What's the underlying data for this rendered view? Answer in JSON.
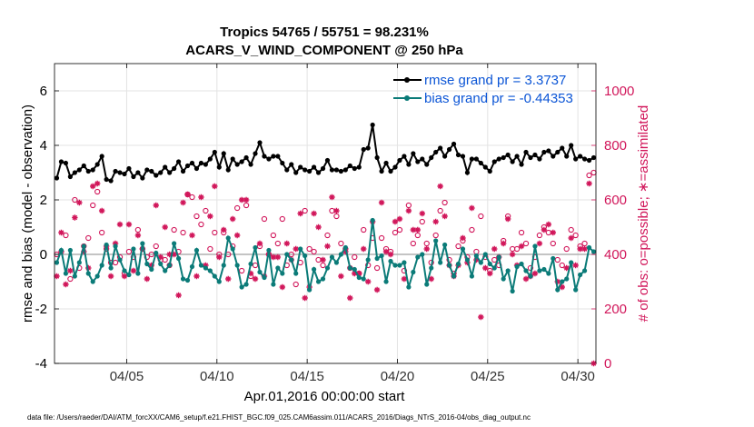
{
  "colors": {
    "rmse": "#000000",
    "bias": "#0b7b78",
    "obs": "#d1165a",
    "zero_line": "#b0b0b0",
    "grid": "#e3e3e3",
    "legend_text": "#0b55d6"
  },
  "chart_data": {
    "type": "line",
    "title": "Tropics 54765 / 55751 = 98.231%",
    "subtitle": "ACARS_V_WIND_COMPONENT @ 250 hPa",
    "xlabel": "Apr.01,2016 00:00:00 start",
    "ylabel_left": "rmse and bias (model - observation)",
    "ylabel_right": "# of obs: o=possible; ∗=assimilated",
    "xlim": [
      1,
      31
    ],
    "ylim_left": [
      -4,
      7
    ],
    "ylim_right": [
      0,
      1100
    ],
    "xticks": [
      5,
      10,
      15,
      20,
      25,
      30
    ],
    "xtick_labels": [
      "04/05",
      "04/10",
      "04/15",
      "04/20",
      "04/25",
      "04/30"
    ],
    "yticks_left": [
      -4,
      -2,
      0,
      2,
      4,
      6
    ],
    "yticks_right": [
      0,
      200,
      400,
      600,
      800,
      1000
    ],
    "legend": [
      "rmse grand pr = 3.3737",
      "bias grand pr = -0.44353"
    ],
    "x": [
      1.125,
      1.375,
      1.625,
      1.875,
      2.125,
      2.375,
      2.625,
      2.875,
      3.125,
      3.375,
      3.625,
      3.875,
      4.125,
      4.375,
      4.625,
      4.875,
      5.125,
      5.375,
      5.625,
      5.875,
      6.125,
      6.375,
      6.625,
      6.875,
      7.125,
      7.375,
      7.625,
      7.875,
      8.125,
      8.375,
      8.625,
      8.875,
      9.125,
      9.375,
      9.625,
      9.875,
      10.125,
      10.375,
      10.625,
      10.875,
      11.125,
      11.375,
      11.625,
      11.875,
      12.125,
      12.375,
      12.625,
      12.875,
      13.125,
      13.375,
      13.625,
      13.875,
      14.125,
      14.375,
      14.625,
      14.875,
      15.125,
      15.375,
      15.625,
      15.875,
      16.125,
      16.375,
      16.625,
      16.875,
      17.125,
      17.375,
      17.625,
      17.875,
      18.125,
      18.375,
      18.625,
      18.875,
      19.125,
      19.375,
      19.625,
      19.875,
      20.125,
      20.375,
      20.625,
      20.875,
      21.125,
      21.375,
      21.625,
      21.875,
      22.125,
      22.375,
      22.625,
      22.875,
      23.125,
      23.375,
      23.625,
      23.875,
      24.125,
      24.375,
      24.625,
      24.875,
      25.125,
      25.375,
      25.625,
      25.875,
      26.125,
      26.375,
      26.625,
      26.875,
      27.125,
      27.375,
      27.625,
      27.875,
      28.125,
      28.375,
      28.625,
      28.875,
      29.125,
      29.375,
      29.625,
      29.875,
      30.125,
      30.375,
      30.625,
      30.875
    ],
    "series": [
      {
        "name": "rmse",
        "values": [
          2.8,
          3.4,
          3.35,
          2.85,
          3.0,
          3.1,
          3.25,
          3.05,
          3.1,
          3.3,
          3.6,
          2.75,
          2.7,
          3.05,
          3.0,
          2.95,
          3.15,
          2.85,
          3.0,
          2.8,
          3.1,
          3.05,
          2.9,
          3.0,
          3.2,
          3.0,
          3.15,
          3.4,
          3.05,
          3.25,
          3.35,
          3.15,
          3.35,
          3.3,
          3.5,
          3.75,
          3.2,
          3.7,
          3.1,
          3.5,
          3.3,
          3.4,
          3.55,
          3.3,
          3.7,
          4.1,
          3.6,
          3.5,
          3.6,
          3.6,
          3.35,
          3.1,
          3.3,
          3.0,
          3.2,
          3.1,
          3.05,
          3.2,
          3.0,
          3.15,
          3.45,
          3.1,
          3.1,
          3.05,
          3.1,
          3.25,
          3.15,
          3.2,
          3.85,
          3.9,
          4.75,
          3.55,
          3.05,
          3.35,
          3.05,
          3.2,
          3.45,
          3.6,
          3.3,
          3.7,
          3.4,
          3.5,
          3.3,
          3.55,
          3.75,
          3.9,
          3.6,
          3.85,
          4.05,
          3.65,
          3.6,
          3.0,
          3.5,
          3.5,
          3.35,
          3.2,
          3.05,
          3.4,
          3.5,
          3.55,
          3.65,
          3.4,
          3.6,
          3.3,
          3.75,
          3.55,
          3.65,
          3.5,
          3.75,
          3.8,
          3.6,
          3.75,
          3.9,
          3.6,
          4.0,
          3.5,
          3.6,
          3.5,
          3.45,
          3.55
        ]
      },
      {
        "name": "bias",
        "values": [
          -0.3,
          0.15,
          -0.7,
          0.15,
          -0.8,
          -0.3,
          0.3,
          -0.7,
          -1.0,
          -0.8,
          -0.4,
          0.35,
          -0.5,
          0.3,
          -0.2,
          -0.6,
          -0.75,
          0.2,
          -0.7,
          0.4,
          -0.35,
          -0.55,
          0.05,
          -0.35,
          -0.6,
          -0.4,
          0.4,
          -0.15,
          -0.9,
          -0.95,
          -0.45,
          0.15,
          -0.4,
          -0.5,
          -0.6,
          -0.8,
          -1.0,
          -0.4,
          0.6,
          0.2,
          -0.4,
          -1.2,
          -1.1,
          -0.35,
          0.25,
          -0.65,
          -0.85,
          0.15,
          -1.1,
          -0.5,
          -0.7,
          0.0,
          -0.2,
          -0.7,
          0.2,
          -0.05,
          -1.3,
          -0.55,
          -1.0,
          -0.9,
          -0.5,
          -0.1,
          -0.3,
          0.0,
          0.25,
          -0.5,
          -0.55,
          -0.85,
          -0.9,
          -0.2,
          1.25,
          -0.15,
          -0.05,
          -1.0,
          -0.25,
          -0.4,
          -0.4,
          -0.3,
          -1.2,
          -0.65,
          -0.1,
          0.0,
          -1.1,
          -0.5,
          0.5,
          -0.3,
          0.35,
          -0.4,
          -0.8,
          -0.35,
          0.2,
          -0.2,
          -0.8,
          -0.05,
          -0.3,
          0.0,
          -0.35,
          -0.5,
          -0.1,
          -0.9,
          -0.6,
          -1.35,
          -0.45,
          -0.35,
          -0.6,
          -0.8,
          0.3,
          -0.6,
          -0.55,
          -0.7,
          -0.15,
          -1.3,
          -1.0,
          -0.9,
          -0.3,
          -1.3,
          -0.75,
          -0.6,
          0.25,
          0.1
        ]
      },
      {
        "name": "obs_assimilated",
        "values": [
          320,
          480,
          290,
          340,
          535,
          590,
          410,
          350,
          650,
          660,
          560,
          430,
          320,
          440,
          510,
          320,
          510,
          340,
          470,
          420,
          310,
          360,
          580,
          390,
          500,
          400,
          400,
          250,
          590,
          620,
          470,
          320,
          610,
          360,
          540,
          650,
          390,
          490,
          310,
          530,
          470,
          600,
          600,
          330,
          310,
          440,
          320,
          400,
          390,
          390,
          280,
          440,
          380,
          420,
          550,
          240,
          280,
          550,
          500,
          380,
          430,
          610,
          560,
          320,
          410,
          240,
          330,
          330,
          420,
          300,
          520,
          270,
          590,
          410,
          400,
          520,
          530,
          310,
          560,
          490,
          490,
          550,
          420,
          310,
          520,
          650,
          540,
          360,
          320,
          360,
          460,
          370,
          570,
          380,
          170,
          350,
          330,
          420,
          390,
          440,
          530,
          400,
          360,
          430,
          310,
          320,
          330,
          440,
          490,
          510,
          480,
          300,
          280,
          350,
          460,
          360,
          420,
          420,
          660,
          0
        ]
      },
      {
        "name": "obs_possible",
        "values": [
          400,
          410,
          470,
          310,
          600,
          350,
          430,
          460,
          580,
          630,
          480,
          420,
          370,
          370,
          390,
          330,
          410,
          390,
          490,
          420,
          390,
          400,
          430,
          380,
          380,
          360,
          490,
          410,
          480,
          620,
          610,
          540,
          510,
          560,
          420,
          480,
          400,
          480,
          400,
          430,
          570,
          340,
          580,
          320,
          360,
          430,
          530,
          400,
          470,
          440,
          530,
          360,
          400,
          290,
          370,
          560,
          420,
          410,
          380,
          360,
          470,
          560,
          540,
          440,
          420,
          350,
          390,
          330,
          490,
          360,
          460,
          350,
          460,
          420,
          410,
          480,
          490,
          340,
          580,
          440,
          470,
          520,
          440,
          370,
          470,
          560,
          590,
          380,
          330,
          430,
          450,
          390,
          490,
          410,
          540,
          390,
          340,
          380,
          360,
          450,
          540,
          420,
          420,
          480,
          440,
          350,
          390,
          470,
          500,
          480,
          440,
          380,
          360,
          420,
          490,
          470,
          430,
          440,
          690,
          700
        ]
      }
    ]
  },
  "footer": "data file: /Users/raeder/DAI/ATM_forcXX/CAM6_setup/f.e21.FHIST_BGC.f09_025.CAM6assim.011/ACARS_2016/Diags_NTrS_2016-04/obs_diag_output.nc"
}
